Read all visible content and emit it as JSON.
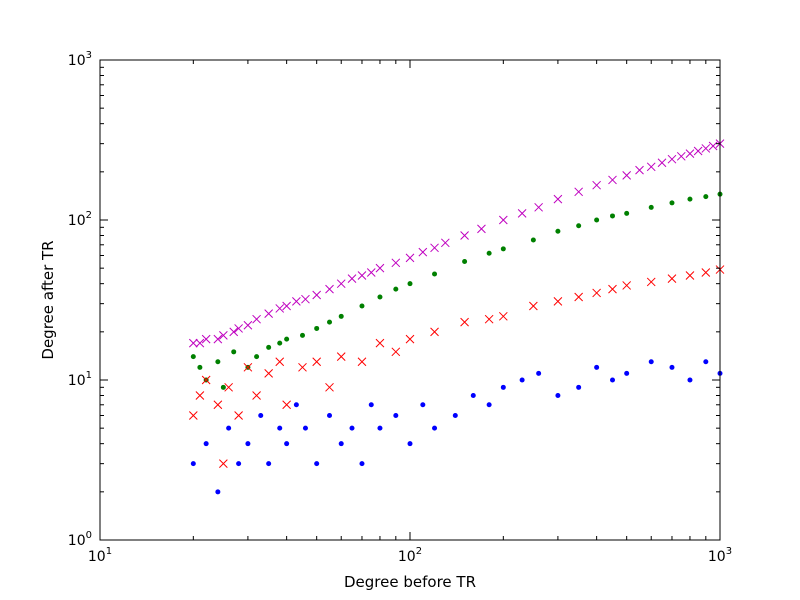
{
  "chart_data": {
    "type": "scatter",
    "title": "",
    "xlabel": "Degree before TR",
    "ylabel": "Degree after TR",
    "xscale": "log",
    "yscale": "log",
    "xlim": [
      10,
      1000
    ],
    "ylim": [
      1,
      1000
    ],
    "grid": false,
    "legend": "none",
    "x_ticks": [
      {
        "base": "10",
        "exp": "1",
        "value": 10
      },
      {
        "base": "10",
        "exp": "2",
        "value": 100
      },
      {
        "base": "10",
        "exp": "3",
        "value": 1000
      }
    ],
    "y_ticks": [
      {
        "base": "10",
        "exp": "0",
        "value": 1
      },
      {
        "base": "10",
        "exp": "1",
        "value": 10
      },
      {
        "base": "10",
        "exp": "2",
        "value": 100
      },
      {
        "base": "10",
        "exp": "3",
        "value": 1000
      }
    ],
    "series": [
      {
        "color": "#bf00bf",
        "marker": "x",
        "x": [
          20,
          21,
          22,
          24,
          25,
          27,
          28,
          30,
          32,
          35,
          38,
          40,
          43,
          46,
          50,
          55,
          60,
          65,
          70,
          75,
          80,
          90,
          100,
          110,
          120,
          130,
          150,
          170,
          200,
          230,
          260,
          300,
          350,
          400,
          450,
          500,
          550,
          600,
          650,
          700,
          750,
          800,
          850,
          900,
          950,
          1000
        ],
        "y": [
          17,
          17,
          18,
          18,
          19,
          20,
          21,
          22,
          24,
          26,
          28,
          29,
          31,
          32,
          34,
          37,
          40,
          43,
          45,
          47,
          50,
          54,
          58,
          63,
          67,
          72,
          80,
          88,
          100,
          110,
          120,
          135,
          150,
          165,
          178,
          190,
          205,
          215,
          228,
          240,
          250,
          260,
          270,
          280,
          290,
          300
        ]
      },
      {
        "color": "#008000",
        "marker": "o",
        "x": [
          20,
          21,
          22,
          24,
          25,
          27,
          30,
          32,
          35,
          38,
          40,
          45,
          50,
          55,
          60,
          70,
          80,
          90,
          100,
          120,
          150,
          180,
          200,
          250,
          300,
          350,
          400,
          450,
          500,
          600,
          700,
          800,
          900,
          1000
        ],
        "y": [
          14,
          12,
          10,
          13,
          9,
          15,
          12,
          14,
          16,
          17,
          18,
          19,
          21,
          23,
          25,
          29,
          33,
          37,
          40,
          46,
          55,
          62,
          66,
          75,
          85,
          92,
          100,
          106,
          110,
          120,
          128,
          135,
          140,
          145
        ]
      },
      {
        "color": "#ff0000",
        "marker": "x",
        "x": [
          20,
          21,
          22,
          24,
          25,
          26,
          28,
          30,
          32,
          35,
          38,
          40,
          45,
          50,
          55,
          60,
          70,
          80,
          90,
          100,
          120,
          150,
          180,
          200,
          250,
          300,
          350,
          400,
          450,
          500,
          600,
          700,
          800,
          900,
          1000
        ],
        "y": [
          6,
          8,
          10,
          7,
          3,
          9,
          6,
          12,
          8,
          11,
          13,
          7,
          12,
          13,
          9,
          14,
          13,
          17,
          15,
          18,
          20,
          23,
          24,
          25,
          29,
          31,
          33,
          35,
          37,
          39,
          41,
          43,
          45,
          47,
          49
        ]
      },
      {
        "color": "#0000ff",
        "marker": "o",
        "x": [
          20,
          22,
          24,
          26,
          28,
          30,
          33,
          35,
          38,
          40,
          43,
          46,
          50,
          55,
          60,
          65,
          70,
          75,
          80,
          90,
          100,
          110,
          120,
          140,
          160,
          180,
          200,
          230,
          260,
          300,
          350,
          400,
          450,
          500,
          600,
          700,
          800,
          900,
          1000
        ],
        "y": [
          3,
          4,
          2,
          5,
          3,
          4,
          6,
          3,
          5,
          4,
          7,
          5,
          3,
          6,
          4,
          5,
          3,
          7,
          5,
          6,
          4,
          7,
          5,
          6,
          8,
          7,
          9,
          10,
          11,
          8,
          9,
          12,
          10,
          11,
          13,
          12,
          10,
          13,
          11
        ]
      }
    ]
  }
}
